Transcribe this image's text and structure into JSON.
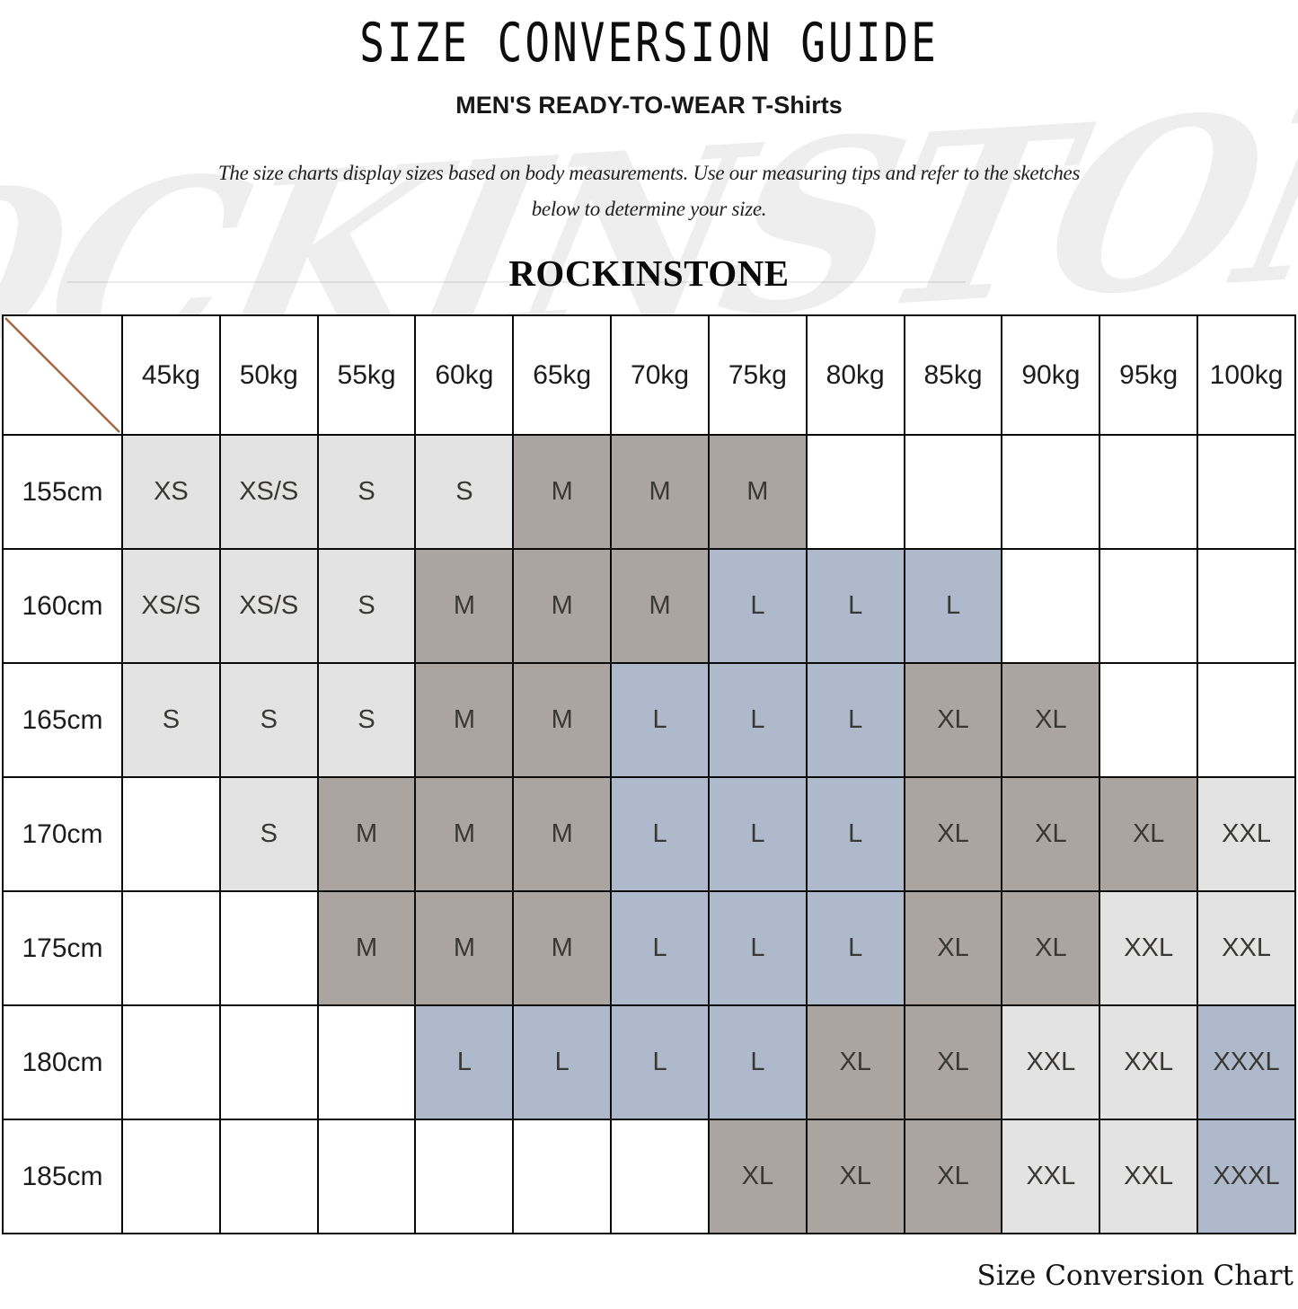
{
  "header": {
    "title": "SIZE CONVERSION GUIDE",
    "subtitle": "MEN'S READY-TO-WEAR T-Shirts",
    "description_line1": "The size charts display sizes based on body measurements. Use our measuring tips and refer to the sketches",
    "description_line2": "below to determine your size.",
    "brand": "ROCKINSTONE"
  },
  "watermark": {
    "text": "ROCKINSTONE"
  },
  "footer": {
    "caption": "Size Conversion Chart"
  },
  "colors": {
    "diagonal_line": "#a4673b",
    "cell_border": "#0a0a0a",
    "size_group_light_gray": "#e3e3e3",
    "size_group_dark_gray": "#aaa5a0",
    "size_group_blue": "#aebacb"
  },
  "chart_data": {
    "type": "table",
    "title": "SIZE CONVERSION GUIDE",
    "subtitle": "MEN'S READY-TO-WEAR T-Shirts",
    "columns": [
      "45kg",
      "50kg",
      "55kg",
      "60kg",
      "65kg",
      "70kg",
      "75kg",
      "80kg",
      "85kg",
      "90kg",
      "95kg",
      "100kg"
    ],
    "rows": [
      {
        "label": "155cm",
        "cells": [
          "XS",
          "XS/S",
          "S",
          "S",
          "M",
          "M",
          "M",
          "",
          "",
          "",
          "",
          ""
        ]
      },
      {
        "label": "160cm",
        "cells": [
          "XS/S",
          "XS/S",
          "S",
          "M",
          "M",
          "M",
          "L",
          "L",
          "L",
          "",
          "",
          ""
        ]
      },
      {
        "label": "165cm",
        "cells": [
          "S",
          "S",
          "S",
          "M",
          "M",
          "L",
          "L",
          "L",
          "XL",
          "XL",
          "",
          ""
        ]
      },
      {
        "label": "170cm",
        "cells": [
          "",
          "S",
          "M",
          "M",
          "M",
          "L",
          "L",
          "L",
          "XL",
          "XL",
          "XL",
          "XXL"
        ]
      },
      {
        "label": "175cm",
        "cells": [
          "",
          "",
          "M",
          "M",
          "M",
          "L",
          "L",
          "L",
          "XL",
          "XL",
          "XXL",
          "XXL"
        ]
      },
      {
        "label": "180cm",
        "cells": [
          "",
          "",
          "",
          "L",
          "L",
          "L",
          "L",
          "XL",
          "XL",
          "XXL",
          "XXL",
          "XXXL"
        ]
      },
      {
        "label": "185cm",
        "cells": [
          "",
          "",
          "",
          "",
          "",
          "",
          "XL",
          "XL",
          "XL",
          "XXL",
          "XXL",
          "XXXL"
        ]
      }
    ],
    "size_colors": {
      "XS": "#e3e3e3",
      "XS/S": "#e3e3e3",
      "S": "#e3e3e3",
      "M": "#aaa5a0",
      "L": "#aebacb",
      "XL": "#aaa5a0",
      "XXL": "#e3e3e3",
      "XXXL": "#aebacb"
    }
  }
}
